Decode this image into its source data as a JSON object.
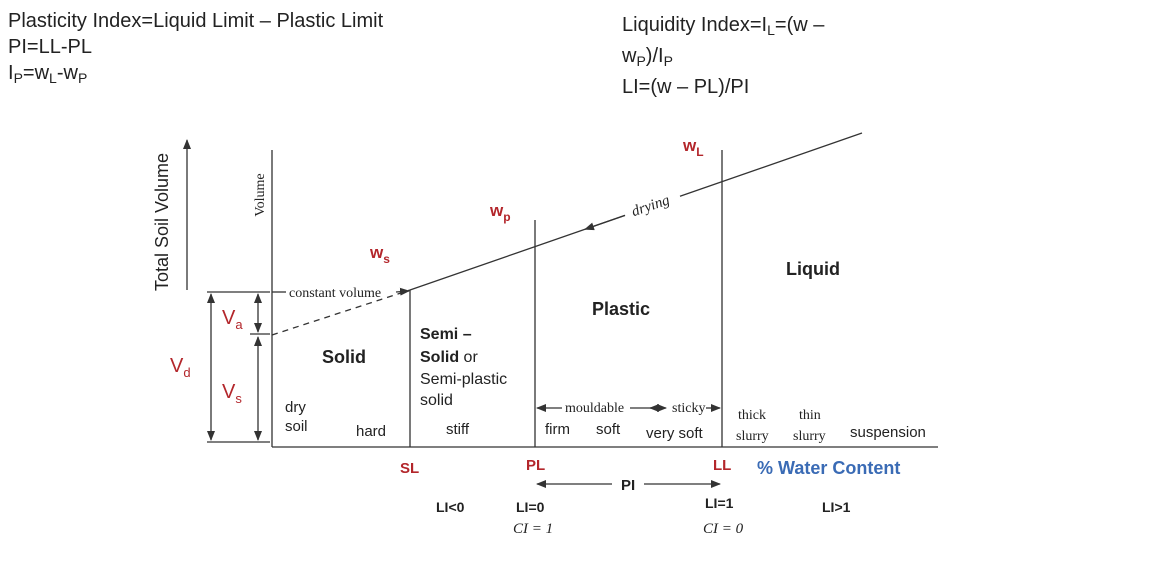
{
  "formulas_left": [
    [
      "Plasticity Index=Liquid Limit – Plastic Limit"
    ],
    [
      "PI=LL-PL"
    ],
    [
      "I",
      "P",
      "=w",
      "L",
      "-w",
      "P"
    ]
  ],
  "formulas_right": [
    [
      "Liquidity Index=I",
      "L",
      "=(w –"
    ],
    [
      "w",
      "P",
      ")/I",
      "P"
    ],
    [
      "LI=(w – PL)/PI"
    ]
  ],
  "diagram": {
    "axis_total": "Total Soil Volume",
    "axis_volume": "Volume",
    "constant_volume": "constant volume",
    "drying": "drying",
    "ws": [
      "w",
      "s"
    ],
    "wp": [
      "w",
      "p"
    ],
    "wl": [
      "w",
      "L"
    ],
    "va": [
      "V",
      "a"
    ],
    "vs": [
      "V",
      "s"
    ],
    "vd": [
      "V",
      "d"
    ],
    "solid": "Solid",
    "semi": [
      "Semi –",
      "Solid",
      " or",
      "Semi-plastic",
      "solid"
    ],
    "plastic": "Plastic",
    "liquid": "Liquid",
    "states": {
      "dry": "dry",
      "soil": "soil",
      "hard": "hard",
      "stiff": "stiff",
      "firm": "firm",
      "soft": "soft",
      "very_soft": "very soft",
      "thick": "thick",
      "slurry1": "slurry",
      "thin": "thin",
      "slurry2": "slurry",
      "suspension": "suspension"
    },
    "mouldable": "mouldable",
    "sticky": "sticky",
    "sl": "SL",
    "pl": "PL",
    "ll": "LL",
    "water_content": "% Water Content",
    "pi": "PI",
    "li_lt0": "LI<0",
    "li_0": "LI=0",
    "ci_1": "CI = 1",
    "li_1": "LI=1",
    "ci_0": "CI = 0",
    "li_gt1": "LI>1"
  }
}
